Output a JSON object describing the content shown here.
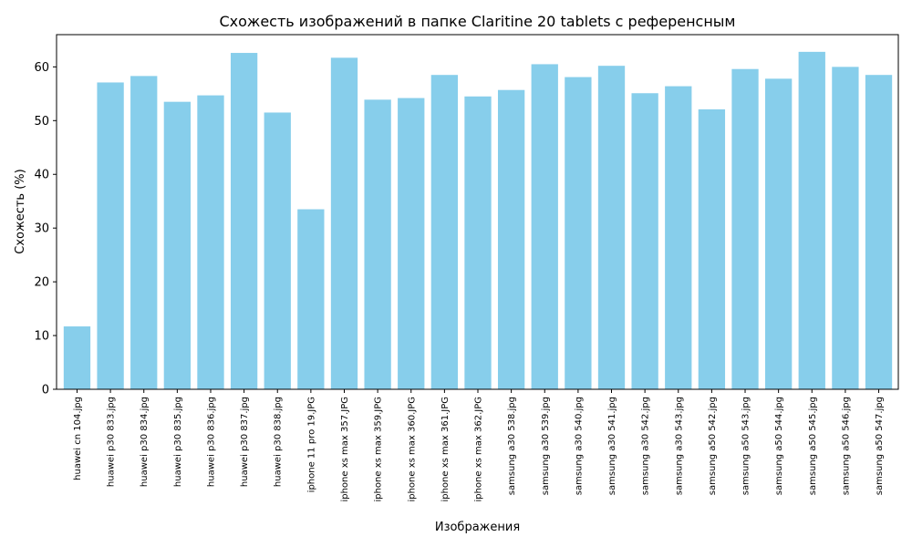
{
  "chart_data": {
    "type": "bar",
    "title": "Схожесть изображений в папке Claritine 20 tablets с референсным",
    "xlabel": "Изображения",
    "ylabel": "Схожесть (%)",
    "ylim": [
      0,
      66
    ],
    "yticks": [
      0,
      10,
      20,
      30,
      40,
      50,
      60
    ],
    "bar_color": "#87ceeb",
    "grid": false,
    "categories": [
      "huawei cn 104.jpg",
      "huawei p30 833.jpg",
      "huawei p30 834.jpg",
      "huawei p30 835.jpg",
      "huawei p30 836.jpg",
      "huawei p30 837.jpg",
      "huawei p30 838.jpg",
      "iphone 11 pro 19.JPG",
      "iphone xs max 357.JPG",
      "iphone xs max 359.JPG",
      "iphone xs max 360.JPG",
      "iphone xs max 361.JPG",
      "iphone xs max 362.JPG",
      "samsung a30 538.jpg",
      "samsung a30 539.jpg",
      "samsung a30 540.jpg",
      "samsung a30 541.jpg",
      "samsung a30 542.jpg",
      "samsung a30 543.jpg",
      "samsung a50 542.jpg",
      "samsung a50 543.jpg",
      "samsung a50 544.jpg",
      "samsung a50 545.jpg",
      "samsung a50 546.jpg",
      "samsung a50 547.jpg"
    ],
    "values": [
      11.7,
      57.1,
      58.3,
      53.5,
      54.7,
      62.6,
      51.5,
      33.5,
      61.7,
      53.9,
      54.2,
      58.5,
      54.5,
      55.7,
      60.5,
      58.1,
      60.2,
      55.1,
      56.4,
      52.1,
      59.6,
      57.8,
      62.8,
      60.0,
      58.5
    ]
  }
}
